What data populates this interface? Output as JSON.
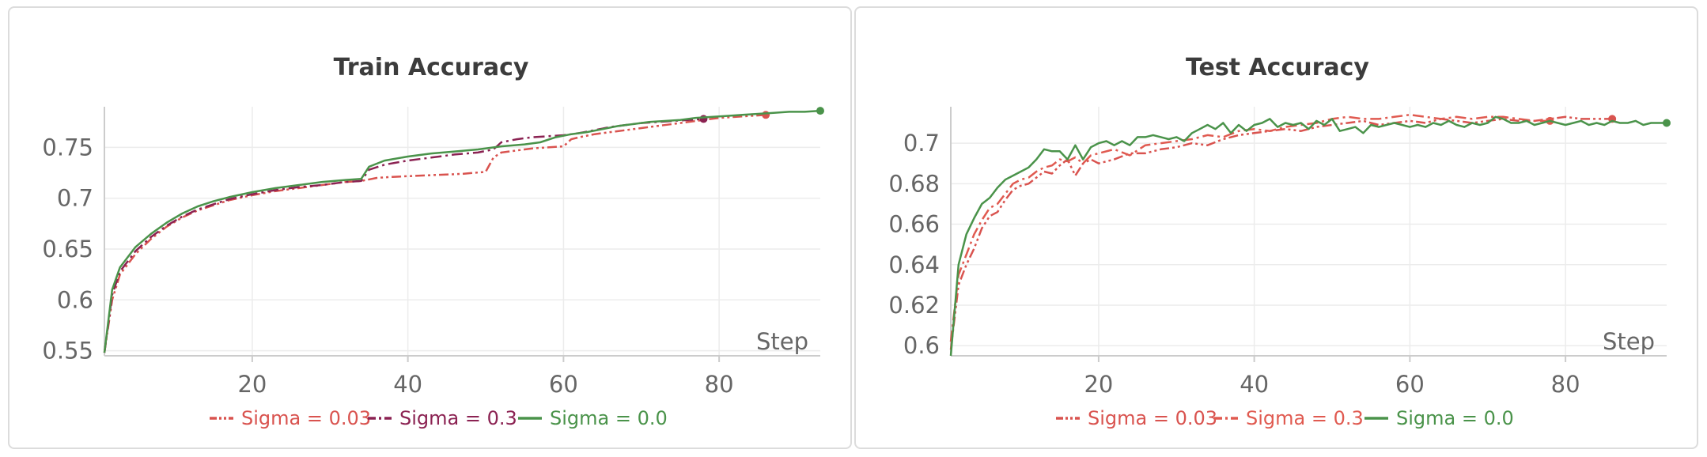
{
  "panels": [
    {
      "id": "panel-0",
      "title": "Train Accuracy",
      "xlabel": "Step",
      "chart_data": {
        "type": "line",
        "title": "Train Accuracy",
        "xlabel": "Step",
        "ylabel": "",
        "xlim": [
          1,
          93
        ],
        "ylim": [
          0.545,
          0.79
        ],
        "xticks": [
          20,
          40,
          60,
          80
        ],
        "yticks": [
          0.55,
          0.6,
          0.65,
          0.7,
          0.75
        ],
        "ytick_labels": [
          "0.55",
          "0.6",
          "0.65",
          "0.7",
          "0.75"
        ],
        "grid": true,
        "legend_position": "bottom",
        "series": [
          {
            "name": "Sigma = 0.03",
            "color": "#d9534f",
            "dash": "dashdotdot",
            "x": [
              1,
              2,
              3,
              5,
              7,
              9,
              11,
              13,
              15,
              17,
              20,
              23,
              26,
              29,
              32,
              34,
              36,
              38,
              41,
              44,
              47,
              50,
              51,
              52,
              54,
              56,
              58,
              60,
              61,
              62,
              64,
              66,
              68,
              70,
              72,
              74,
              76,
              78,
              80,
              82,
              84,
              86
            ],
            "y": [
              0.548,
              0.6,
              0.625,
              0.645,
              0.66,
              0.672,
              0.681,
              0.688,
              0.693,
              0.698,
              0.703,
              0.707,
              0.71,
              0.713,
              0.716,
              0.717,
              0.72,
              0.721,
              0.722,
              0.723,
              0.724,
              0.726,
              0.74,
              0.745,
              0.747,
              0.749,
              0.75,
              0.751,
              0.758,
              0.76,
              0.763,
              0.765,
              0.767,
              0.769,
              0.771,
              0.773,
              0.775,
              0.777,
              0.779,
              0.78,
              0.781,
              0.782
            ],
            "end_marker": true
          },
          {
            "name": "Sigma = 0.3",
            "color": "#8b2252",
            "dash": "dashdot",
            "x": [
              1,
              2,
              3,
              5,
              7,
              9,
              11,
              13,
              15,
              17,
              20,
              23,
              26,
              29,
              32,
              34,
              35,
              37,
              40,
              43,
              46,
              49,
              51,
              52,
              54,
              56,
              58,
              60,
              62,
              64,
              66,
              68,
              70,
              72,
              74,
              76,
              78
            ],
            "y": [
              0.548,
              0.605,
              0.628,
              0.648,
              0.662,
              0.673,
              0.682,
              0.689,
              0.694,
              0.699,
              0.704,
              0.708,
              0.711,
              0.713,
              0.716,
              0.717,
              0.728,
              0.733,
              0.737,
              0.74,
              0.743,
              0.745,
              0.748,
              0.755,
              0.758,
              0.76,
              0.761,
              0.762,
              0.764,
              0.767,
              0.77,
              0.772,
              0.774,
              0.775,
              0.776,
              0.777,
              0.778
            ],
            "end_marker": true
          },
          {
            "name": "Sigma = 0.0",
            "color": "#4a934a",
            "dash": "solid",
            "x": [
              1,
              2,
              3,
              5,
              7,
              9,
              11,
              13,
              15,
              17,
              20,
              23,
              26,
              29,
              32,
              34,
              35,
              37,
              40,
              43,
              46,
              49,
              52,
              55,
              57,
              59,
              61,
              63,
              65,
              67,
              69,
              71,
              73,
              75,
              77,
              79,
              81,
              83,
              85,
              87,
              89,
              91,
              93
            ],
            "y": [
              0.548,
              0.61,
              0.632,
              0.652,
              0.665,
              0.676,
              0.685,
              0.692,
              0.697,
              0.701,
              0.706,
              0.71,
              0.713,
              0.716,
              0.718,
              0.719,
              0.731,
              0.737,
              0.741,
              0.744,
              0.746,
              0.748,
              0.751,
              0.753,
              0.755,
              0.76,
              0.763,
              0.765,
              0.768,
              0.771,
              0.773,
              0.775,
              0.776,
              0.777,
              0.779,
              0.78,
              0.781,
              0.782,
              0.783,
              0.784,
              0.785,
              0.785,
              0.786
            ],
            "end_marker": true
          }
        ]
      }
    },
    {
      "id": "panel-1",
      "title": "Test Accuracy",
      "xlabel": "Step",
      "chart_data": {
        "type": "line",
        "title": "Test Accuracy",
        "xlabel": "Step",
        "ylabel": "",
        "xlim": [
          1,
          93
        ],
        "ylim": [
          0.595,
          0.718
        ],
        "xticks": [
          20,
          40,
          60,
          80
        ],
        "yticks": [
          0.6,
          0.62,
          0.64,
          0.66,
          0.68,
          0.7
        ],
        "ytick_labels": [
          "0.6",
          "0.62",
          "0.64",
          "0.66",
          "0.68",
          "0.7"
        ],
        "grid": true,
        "legend_position": "bottom",
        "series": [
          {
            "name": "Sigma = 0.03",
            "color": "#d9534f",
            "dash": "dashdotdot",
            "x": [
              1,
              2,
              3,
              4,
              5,
              6,
              7,
              8,
              9,
              10,
              11,
              12,
              13,
              14,
              15,
              16,
              17,
              18,
              19,
              20,
              22,
              24,
              26,
              28,
              30,
              32,
              34,
              36,
              38,
              40,
              42,
              44,
              46,
              48,
              50,
              52,
              54,
              56,
              58,
              60,
              62,
              64,
              66,
              68,
              70,
              72,
              74,
              76,
              78,
              80,
              82,
              84,
              86
            ],
            "y": [
              0.598,
              0.63,
              0.64,
              0.648,
              0.658,
              0.664,
              0.666,
              0.672,
              0.677,
              0.679,
              0.68,
              0.683,
              0.686,
              0.685,
              0.689,
              0.692,
              0.684,
              0.69,
              0.692,
              0.69,
              0.692,
              0.695,
              0.695,
              0.697,
              0.698,
              0.7,
              0.699,
              0.702,
              0.704,
              0.705,
              0.706,
              0.707,
              0.706,
              0.708,
              0.709,
              0.71,
              0.711,
              0.709,
              0.71,
              0.711,
              0.71,
              0.712,
              0.711,
              0.71,
              0.711,
              0.712,
              0.711,
              0.711,
              0.712,
              0.713,
              0.712,
              0.712,
              0.712
            ],
            "end_marker": true
          },
          {
            "name": "Sigma = 0.3",
            "color": "#e05a50",
            "dash": "dashdot",
            "x": [
              1,
              2,
              3,
              4,
              5,
              6,
              7,
              8,
              9,
              10,
              11,
              12,
              13,
              14,
              15,
              16,
              17,
              18,
              19,
              20,
              22,
              24,
              26,
              28,
              30,
              32,
              34,
              36,
              38,
              40,
              42,
              44,
              46,
              48,
              50,
              52,
              54,
              56,
              58,
              60,
              62,
              64,
              66,
              68,
              70,
              72,
              74,
              76,
              78
            ],
            "y": [
              0.602,
              0.635,
              0.645,
              0.655,
              0.662,
              0.668,
              0.67,
              0.675,
              0.68,
              0.682,
              0.683,
              0.686,
              0.688,
              0.689,
              0.692,
              0.691,
              0.693,
              0.69,
              0.694,
              0.695,
              0.697,
              0.694,
              0.699,
              0.7,
              0.701,
              0.702,
              0.704,
              0.703,
              0.706,
              0.707,
              0.706,
              0.708,
              0.709,
              0.71,
              0.712,
              0.713,
              0.712,
              0.712,
              0.713,
              0.714,
              0.713,
              0.712,
              0.713,
              0.712,
              0.713,
              0.713,
              0.712,
              0.711,
              0.711
            ],
            "end_marker": true
          },
          {
            "name": "Sigma = 0.0",
            "color": "#4a934a",
            "dash": "solid",
            "x": [
              1,
              2,
              3,
              4,
              5,
              6,
              7,
              8,
              9,
              10,
              11,
              12,
              13,
              14,
              15,
              16,
              17,
              18,
              19,
              20,
              21,
              22,
              23,
              24,
              25,
              26,
              27,
              28,
              29,
              30,
              31,
              32,
              33,
              34,
              35,
              36,
              37,
              38,
              39,
              40,
              41,
              42,
              43,
              44,
              45,
              46,
              47,
              48,
              49,
              50,
              51,
              52,
              53,
              54,
              55,
              56,
              57,
              58,
              59,
              60,
              61,
              62,
              63,
              64,
              65,
              66,
              67,
              68,
              69,
              70,
              71,
              72,
              73,
              74,
              75,
              76,
              77,
              78,
              79,
              80,
              81,
              82,
              83,
              84,
              85,
              86,
              87,
              88,
              89,
              90,
              91,
              92,
              93
            ],
            "y": [
              0.595,
              0.64,
              0.655,
              0.663,
              0.67,
              0.673,
              0.678,
              0.682,
              0.684,
              0.686,
              0.688,
              0.692,
              0.697,
              0.696,
              0.696,
              0.692,
              0.699,
              0.692,
              0.698,
              0.7,
              0.701,
              0.699,
              0.701,
              0.699,
              0.703,
              0.703,
              0.704,
              0.703,
              0.702,
              0.703,
              0.701,
              0.705,
              0.707,
              0.709,
              0.707,
              0.71,
              0.705,
              0.709,
              0.706,
              0.709,
              0.71,
              0.712,
              0.708,
              0.71,
              0.709,
              0.71,
              0.707,
              0.711,
              0.709,
              0.712,
              0.706,
              0.707,
              0.708,
              0.705,
              0.709,
              0.708,
              0.709,
              0.71,
              0.709,
              0.708,
              0.709,
              0.708,
              0.71,
              0.709,
              0.711,
              0.709,
              0.708,
              0.71,
              0.709,
              0.71,
              0.713,
              0.712,
              0.71,
              0.71,
              0.711,
              0.709,
              0.71,
              0.711,
              0.71,
              0.709,
              0.71,
              0.711,
              0.709,
              0.71,
              0.709,
              0.711,
              0.71,
              0.71,
              0.711,
              0.709,
              0.71,
              0.71,
              0.71
            ],
            "end_marker": true
          }
        ]
      }
    }
  ]
}
